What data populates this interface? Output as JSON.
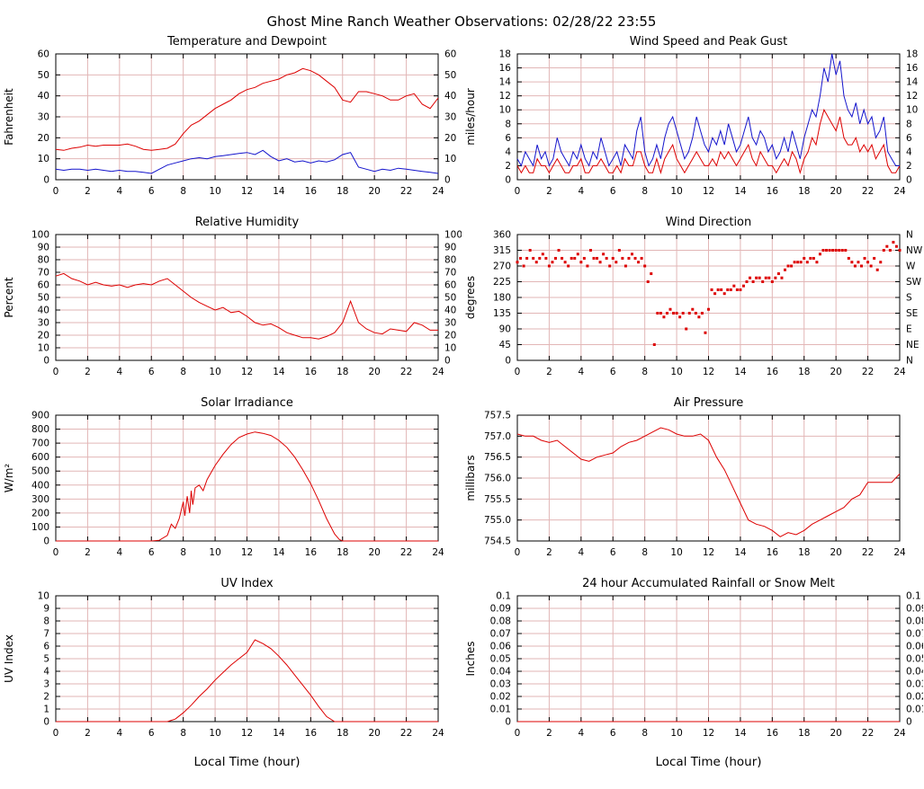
{
  "page": {
    "title": "Ghost Mine Ranch Weather Observations: 02/28/22 23:55"
  },
  "style": {
    "grid_color": "#e2b6b6",
    "frame_color": "#000000",
    "red": "#dd0000",
    "blue": "#1414cc"
  },
  "x_axis": {
    "min": 0,
    "max": 24,
    "tick_step": 2,
    "tick_labels": [
      "0",
      "2",
      "4",
      "6",
      "8",
      "10",
      "12",
      "14",
      "16",
      "18",
      "20",
      "22",
      "24"
    ]
  },
  "chart_data": [
    {
      "type": "line",
      "title": "Temperature and Dewpoint",
      "ylabel": "Fahrenheit",
      "xlabel": "",
      "ymin": 0,
      "ymax": 60,
      "ytick_vals": [
        0,
        10,
        20,
        30,
        40,
        50,
        60
      ],
      "ytick_labels": [
        "0",
        "10",
        "20",
        "30",
        "40",
        "50",
        "60"
      ],
      "right_tick_labels": [
        "0",
        "10",
        "20",
        "30",
        "40",
        "50",
        "60"
      ],
      "series": [
        {
          "name": "temperature",
          "color": "red",
          "type": "line",
          "x0": 0,
          "dx": 0.5,
          "y": [
            14.5,
            14,
            15,
            15.5,
            16.5,
            16,
            16.5,
            16.5,
            16.5,
            17,
            16,
            14.5,
            14,
            14.5,
            15,
            17,
            22,
            26,
            28,
            31,
            34,
            36,
            38,
            41,
            43,
            44,
            46,
            47,
            48,
            50,
            51,
            53,
            52,
            50,
            47,
            44,
            38,
            37,
            42,
            42,
            41,
            40,
            38,
            38,
            40,
            41,
            36,
            34,
            39
          ]
        },
        {
          "name": "dewpoint",
          "color": "blue",
          "type": "line",
          "x0": 0,
          "dx": 0.5,
          "y": [
            5,
            4.5,
            5,
            5,
            4.5,
            5,
            4.5,
            4,
            4.5,
            4,
            4,
            3.5,
            3,
            5,
            7,
            8,
            9,
            10,
            10.5,
            10,
            11,
            11.5,
            12,
            12.5,
            13,
            12,
            14,
            11,
            9,
            10,
            8.5,
            9,
            8,
            9,
            8.5,
            9.5,
            12,
            13,
            6,
            5,
            4,
            5,
            4.5,
            5.5,
            5,
            4.5,
            4,
            3.5,
            3
          ]
        }
      ]
    },
    {
      "type": "line",
      "title": "Wind Speed and Peak Gust",
      "ylabel": "miles/hour",
      "xlabel": "",
      "ymin": 0,
      "ymax": 18,
      "ytick_vals": [
        0,
        2,
        4,
        6,
        8,
        10,
        12,
        14,
        16,
        18
      ],
      "ytick_labels": [
        "0",
        "2",
        "4",
        "6",
        "8",
        "10",
        "12",
        "14",
        "16",
        "18"
      ],
      "right_tick_labels": [
        "0",
        "2",
        "4",
        "6",
        "8",
        "10",
        "12",
        "14",
        "16",
        "18"
      ],
      "series": [
        {
          "name": "wind-speed",
          "color": "red",
          "type": "line",
          "x0": 0,
          "dx": 0.25,
          "y": [
            2,
            1,
            2,
            1,
            1,
            3,
            2,
            2,
            1,
            2,
            3,
            2,
            1,
            1,
            2,
            2,
            3,
            1,
            1,
            2,
            2,
            3,
            2,
            1,
            1,
            2,
            1,
            3,
            2,
            2,
            4,
            4,
            2,
            1,
            1,
            3,
            1,
            3,
            4,
            5,
            3,
            2,
            1,
            2,
            3,
            4,
            3,
            2,
            2,
            3,
            2,
            4,
            3,
            4,
            3,
            2,
            3,
            4,
            5,
            3,
            2,
            4,
            3,
            2,
            2,
            1,
            2,
            3,
            2,
            4,
            3,
            1,
            3,
            4,
            6,
            5,
            8,
            10,
            9,
            8,
            7,
            9,
            6,
            5,
            5,
            6,
            4,
            5,
            4,
            5,
            3,
            4,
            5,
            2,
            1,
            1,
            2
          ]
        },
        {
          "name": "peak-gust",
          "color": "blue",
          "type": "line",
          "x0": 0,
          "dx": 0.25,
          "y": [
            3,
            2,
            4,
            3,
            2,
            5,
            3,
            4,
            2,
            3,
            6,
            4,
            3,
            2,
            4,
            3,
            5,
            3,
            2,
            4,
            3,
            6,
            4,
            2,
            3,
            4,
            2,
            5,
            4,
            3,
            7,
            9,
            4,
            2,
            3,
            5,
            3,
            6,
            8,
            9,
            7,
            5,
            3,
            4,
            6,
            9,
            7,
            5,
            4,
            6,
            5,
            7,
            5,
            8,
            6,
            4,
            5,
            7,
            9,
            6,
            5,
            7,
            6,
            4,
            5,
            3,
            4,
            6,
            4,
            7,
            5,
            3,
            6,
            8,
            10,
            9,
            12,
            16,
            14,
            18,
            15,
            17,
            12,
            10,
            9,
            11,
            8,
            10,
            8,
            9,
            6,
            7,
            9,
            4,
            3,
            2,
            2
          ]
        }
      ]
    },
    {
      "type": "line",
      "title": "Relative Humidity",
      "ylabel": "Percent",
      "xlabel": "",
      "ymin": 0,
      "ymax": 100,
      "ytick_vals": [
        0,
        10,
        20,
        30,
        40,
        50,
        60,
        70,
        80,
        90,
        100
      ],
      "ytick_labels": [
        "0",
        "10",
        "20",
        "30",
        "40",
        "50",
        "60",
        "70",
        "80",
        "90",
        "100"
      ],
      "right_tick_labels": [
        "0",
        "10",
        "20",
        "30",
        "40",
        "50",
        "60",
        "70",
        "80",
        "90",
        "100"
      ],
      "series": [
        {
          "name": "relative-humidity",
          "color": "red",
          "type": "line",
          "x0": 0,
          "dx": 0.5,
          "y": [
            67,
            69,
            65,
            63,
            60,
            62,
            60,
            59,
            60,
            58,
            60,
            61,
            60,
            63,
            65,
            60,
            55,
            50,
            46,
            43,
            40,
            42,
            38,
            39,
            35,
            30,
            28,
            29,
            26,
            22,
            20,
            18,
            18,
            17,
            19,
            22,
            30,
            47,
            30,
            25,
            22,
            21,
            25,
            24,
            23,
            30,
            28,
            24,
            24
          ]
        }
      ]
    },
    {
      "type": "scatter",
      "title": "Wind Direction",
      "ylabel": "degrees",
      "xlabel": "",
      "ymin": 0,
      "ymax": 360,
      "ytick_vals": [
        0,
        45,
        90,
        135,
        180,
        225,
        270,
        315,
        360
      ],
      "ytick_labels": [
        "0",
        "45",
        "90",
        "135",
        "180",
        "225",
        "270",
        "315",
        "360"
      ],
      "right_tick_labels": [
        "N",
        "NE",
        "E",
        "SE",
        "S",
        "SW",
        "W",
        "NW",
        "N"
      ],
      "series": [
        {
          "name": "wind-direction",
          "color": "red",
          "type": "points",
          "x0": 0,
          "dx": 0.2,
          "y": [
            281,
            292,
            270,
            292,
            315,
            292,
            281,
            292,
            304,
            292,
            270,
            281,
            292,
            315,
            292,
            281,
            270,
            292,
            292,
            304,
            281,
            292,
            270,
            315,
            292,
            292,
            281,
            304,
            292,
            270,
            292,
            281,
            315,
            292,
            270,
            292,
            304,
            292,
            281,
            292,
            270,
            225,
            248,
            45,
            135,
            135,
            124,
            135,
            146,
            135,
            135,
            124,
            135,
            90,
            135,
            146,
            135,
            124,
            135,
            79,
            146,
            202,
            191,
            202,
            202,
            191,
            202,
            202,
            213,
            202,
            202,
            213,
            225,
            236,
            225,
            236,
            236,
            225,
            236,
            236,
            225,
            236,
            248,
            236,
            259,
            270,
            270,
            281,
            281,
            281,
            292,
            281,
            292,
            292,
            281,
            304,
            315,
            315,
            315,
            315,
            315,
            315,
            315,
            315,
            292,
            281,
            270,
            281,
            270,
            292,
            281,
            270,
            292,
            259,
            281,
            315,
            326,
            315,
            338,
            326,
            315
          ]
        }
      ]
    },
    {
      "type": "line",
      "title": "Solar Irradiance",
      "ylabel": "W/m²",
      "xlabel": "",
      "ymin": 0,
      "ymax": 900,
      "ytick_vals": [
        0,
        100,
        200,
        300,
        400,
        500,
        600,
        700,
        800,
        900
      ],
      "ytick_labels": [
        "0",
        "100",
        "200",
        "300",
        "400",
        "500",
        "600",
        "700",
        "800",
        "900"
      ],
      "series": [
        {
          "name": "solar-irradiance",
          "color": "red",
          "type": "line",
          "x": [
            0,
            6,
            6.5,
            7,
            7.25,
            7.5,
            7.75,
            8,
            8.1,
            8.25,
            8.4,
            8.5,
            8.6,
            8.75,
            9,
            9.25,
            9.5,
            10,
            10.5,
            11,
            11.5,
            12,
            12.5,
            13,
            13.5,
            14,
            14.5,
            15,
            15.5,
            16,
            16.5,
            17,
            17.5,
            17.8,
            18,
            24
          ],
          "y": [
            0,
            0,
            5,
            40,
            120,
            90,
            160,
            280,
            180,
            320,
            200,
            360,
            260,
            380,
            400,
            360,
            440,
            540,
            620,
            690,
            740,
            765,
            780,
            770,
            755,
            720,
            670,
            600,
            510,
            410,
            290,
            160,
            50,
            10,
            0,
            0
          ]
        }
      ]
    },
    {
      "type": "line",
      "title": "Air Pressure",
      "ylabel": "millibars",
      "xlabel": "",
      "ymin": 754.5,
      "ymax": 757.5,
      "ytick_vals": [
        754.5,
        755.0,
        755.5,
        756.0,
        756.5,
        757.0,
        757.5
      ],
      "ytick_labels": [
        "754.5",
        "755.0",
        "755.5",
        "756.0",
        "756.5",
        "757.0",
        "757.5"
      ],
      "series": [
        {
          "name": "air-pressure",
          "color": "red",
          "type": "line",
          "x0": 0,
          "dx": 0.5,
          "y": [
            757.05,
            757.0,
            757.0,
            756.9,
            756.85,
            756.9,
            756.75,
            756.6,
            756.45,
            756.4,
            756.5,
            756.55,
            756.6,
            756.75,
            756.85,
            756.9,
            757.0,
            757.1,
            757.2,
            757.15,
            757.05,
            757.0,
            757.0,
            757.05,
            756.9,
            756.5,
            756.2,
            755.8,
            755.4,
            755.0,
            754.9,
            754.85,
            754.75,
            754.6,
            754.7,
            754.65,
            754.75,
            754.9,
            755.0,
            755.1,
            755.2,
            755.3,
            755.5,
            755.6,
            755.9,
            755.9,
            755.9,
            755.9,
            756.1
          ]
        }
      ]
    },
    {
      "type": "line",
      "title": "UV Index",
      "ylabel": "UV Index",
      "xlabel": "Local Time (hour)",
      "ymin": 0,
      "ymax": 10,
      "ytick_vals": [
        0,
        1,
        2,
        3,
        4,
        5,
        6,
        7,
        8,
        9,
        10
      ],
      "ytick_labels": [
        "0",
        "1",
        "2",
        "3",
        "4",
        "5",
        "6",
        "7",
        "8",
        "9",
        "10"
      ],
      "series": [
        {
          "name": "uv-index",
          "color": "red",
          "type": "line",
          "x0": 0,
          "dx": 0.5,
          "y": [
            0,
            0,
            0,
            0,
            0,
            0,
            0,
            0,
            0,
            0,
            0,
            0,
            0,
            0,
            0,
            0.2,
            0.7,
            1.3,
            2.0,
            2.6,
            3.3,
            3.9,
            4.5,
            5.0,
            5.5,
            6.5,
            6.2,
            5.8,
            5.2,
            4.5,
            3.7,
            2.9,
            2.1,
            1.2,
            0.4,
            0,
            0,
            0,
            0,
            0,
            0,
            0,
            0,
            0,
            0,
            0,
            0,
            0,
            0
          ]
        }
      ]
    },
    {
      "type": "line",
      "title": "24 hour Accumulated Rainfall or Snow Melt",
      "ylabel": "Inches",
      "xlabel": "Local Time (hour)",
      "ymin": 0,
      "ymax": 0.1,
      "ytick_vals": [
        0,
        0.01,
        0.02,
        0.03,
        0.04,
        0.05,
        0.06,
        0.07,
        0.08,
        0.09,
        0.1
      ],
      "ytick_labels": [
        "0",
        "0.01",
        "0.02",
        "0.03",
        "0.04",
        "0.05",
        "0.06",
        "0.07",
        "0.08",
        "0.09",
        "0.1"
      ],
      "right_tick_labels": [
        "0",
        "0.01",
        "0.02",
        "0.03",
        "0.04",
        "0.05",
        "0.06",
        "0.07",
        "0.08",
        "0.09",
        "0.1"
      ],
      "series": [
        {
          "name": "rainfall",
          "color": "red",
          "type": "line",
          "x": [
            0,
            24
          ],
          "y": [
            0,
            0
          ]
        }
      ]
    }
  ]
}
